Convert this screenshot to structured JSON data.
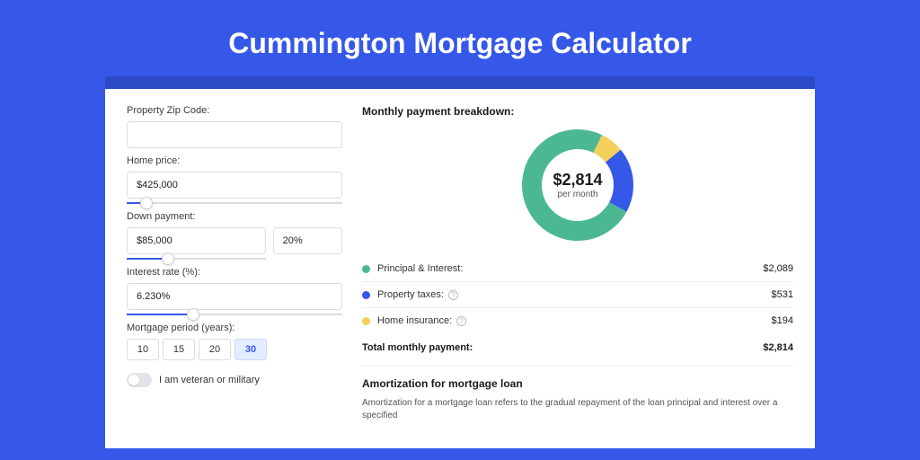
{
  "page": {
    "title": "Cummington Mortgage Calculator",
    "background_color": "#3558e8",
    "band_color": "#2b48c5",
    "card_color": "#ffffff"
  },
  "form": {
    "zip_label": "Property Zip Code:",
    "zip_value": "",
    "home_price_label": "Home price:",
    "home_price_value": "$425,000",
    "home_price_slider": {
      "percent": 9
    },
    "down_payment_label": "Down payment:",
    "down_payment_value": "$85,000",
    "down_payment_pct": "20%",
    "down_payment_slider": {
      "percent": 30
    },
    "interest_label": "Interest rate (%):",
    "interest_value": "6.230%",
    "interest_slider": {
      "percent": 31
    },
    "period_label": "Mortgage period (years):",
    "period_options": [
      "10",
      "15",
      "20",
      "30"
    ],
    "period_selected": "30",
    "veteran_label": "I am veteran or military",
    "veteran_on": false
  },
  "breakdown": {
    "heading": "Monthly payment breakdown:",
    "center_amount": "$2,814",
    "center_sub": "per month",
    "donut": {
      "total": 2814,
      "slices": [
        {
          "key": "principal_interest",
          "value": 2089,
          "color": "#4cb893"
        },
        {
          "key": "property_taxes",
          "value": 531,
          "color": "#3558e8"
        },
        {
          "key": "home_insurance",
          "value": 194,
          "color": "#f2cf5b"
        }
      ],
      "thickness": 22,
      "radius": 62,
      "background": "#ffffff"
    },
    "items": [
      {
        "label": "Principal & Interest:",
        "value": "$2,089",
        "color": "#4cb893",
        "info": false
      },
      {
        "label": "Property taxes:",
        "value": "$531",
        "color": "#3558e8",
        "info": true
      },
      {
        "label": "Home insurance:",
        "value": "$194",
        "color": "#f2cf5b",
        "info": true
      }
    ],
    "total_label": "Total monthly payment:",
    "total_value": "$2,814"
  },
  "amortization": {
    "heading": "Amortization for mortgage loan",
    "text": "Amortization for a mortgage loan refers to the gradual repayment of the loan principal and interest over a specified"
  }
}
